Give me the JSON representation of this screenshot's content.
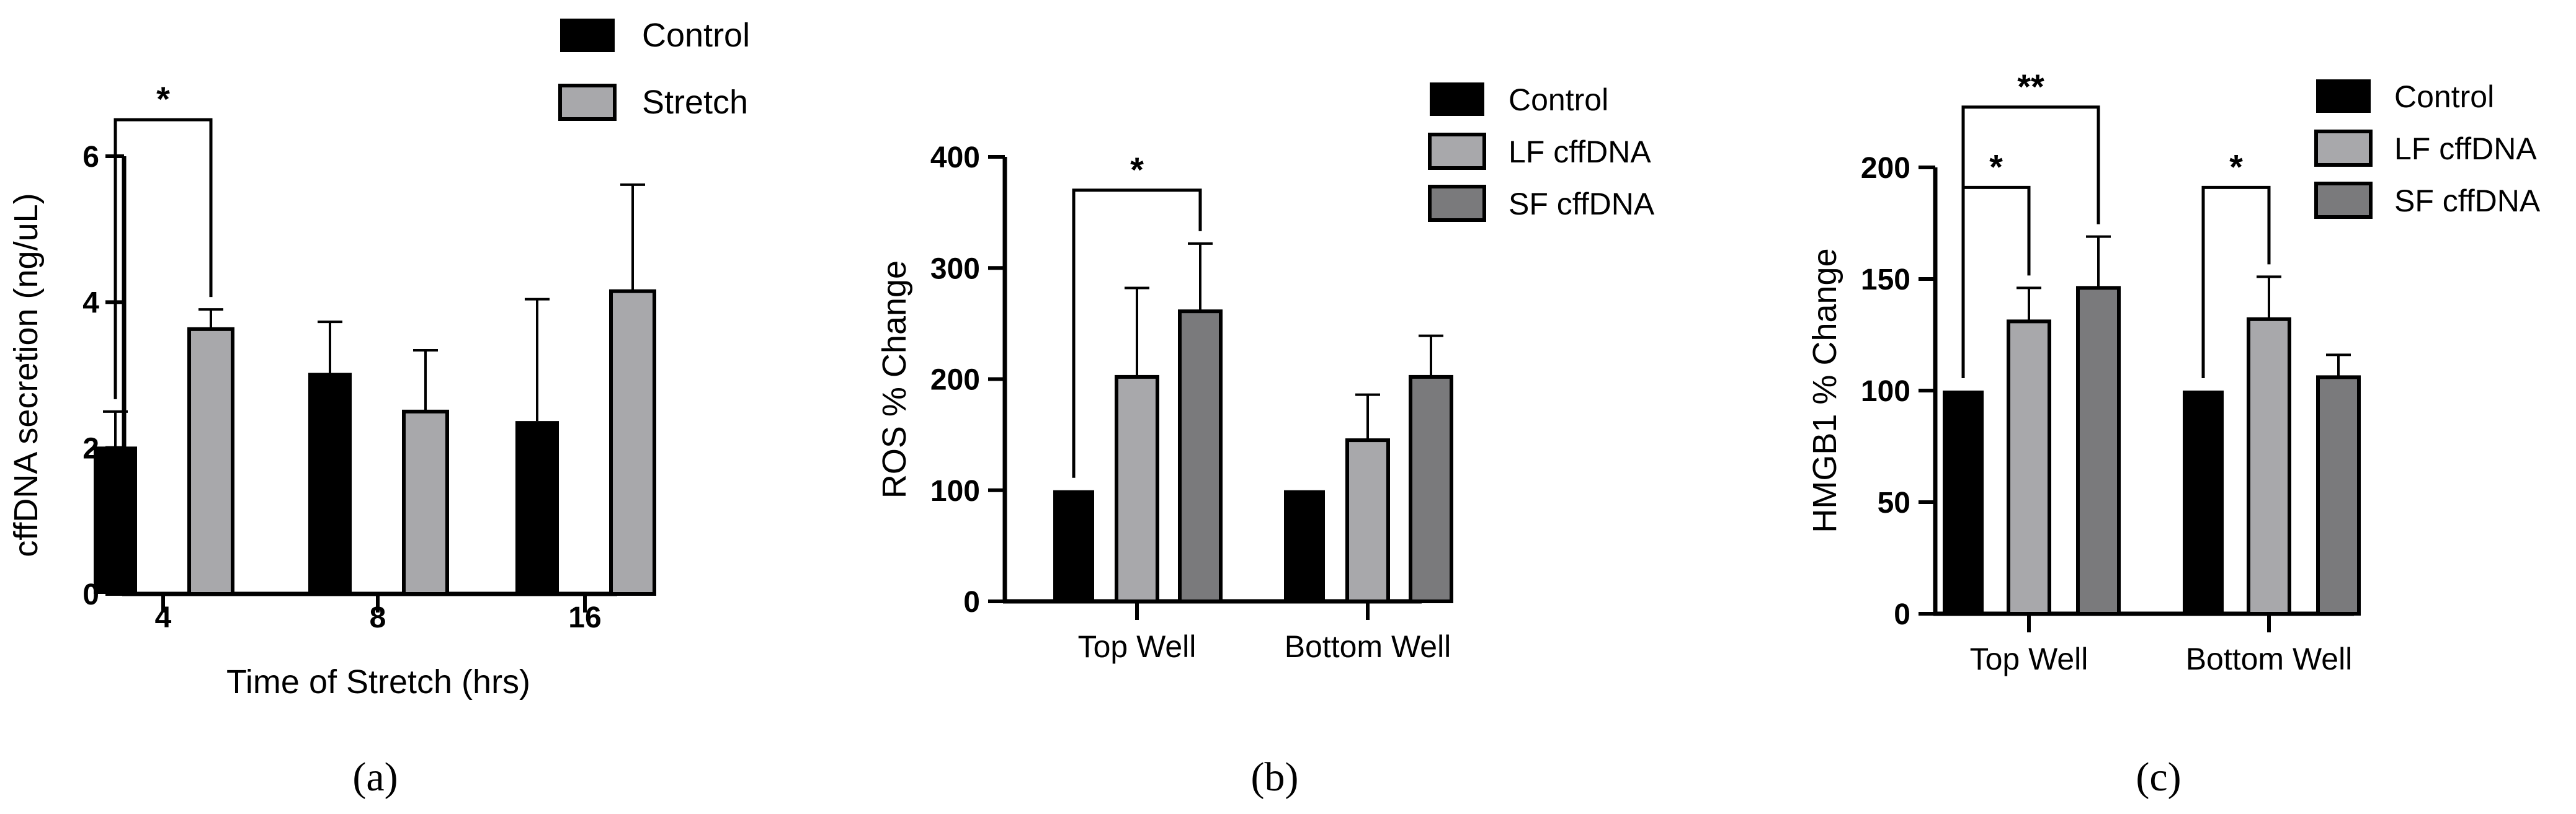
{
  "colors": {
    "control": "#000000",
    "stretch": "#a8a8ab",
    "lf": "#a8a8ab",
    "sf": "#7a7a7c",
    "ink": "#000000"
  },
  "chart_data": [
    {
      "panel": "(a)",
      "type": "bar",
      "title": "",
      "xlabel": "Time of Stretch (hrs)",
      "ylabel": "cffDNA secretion (ng/uL)",
      "ylim": [
        0,
        6
      ],
      "yticks": [
        0,
        2,
        4,
        6
      ],
      "categories": [
        "4",
        "8",
        "16"
      ],
      "legend_position": "top-right",
      "series": [
        {
          "name": "Control",
          "color": "control",
          "values": [
            2.02,
            3.03,
            2.37
          ],
          "errors": [
            0.48,
            0.7,
            1.67
          ]
        },
        {
          "name": "Stretch",
          "color": "stretch",
          "values": [
            3.63,
            2.5,
            4.15
          ],
          "errors": [
            0.27,
            0.84,
            1.46
          ]
        }
      ],
      "significance": [
        {
          "label": "*",
          "from": [
            0,
            0
          ],
          "to": [
            0,
            1
          ],
          "y": 6.5
        }
      ]
    },
    {
      "panel": "(b)",
      "type": "bar",
      "title": "",
      "xlabel": "",
      "ylabel": "ROS % Change",
      "ylim": [
        0,
        400
      ],
      "yticks": [
        0,
        100,
        200,
        300,
        400
      ],
      "categories": [
        "Top Well",
        "Bottom Well"
      ],
      "legend_position": "top-right",
      "series": [
        {
          "name": "Control",
          "color": "control",
          "values": [
            100,
            100
          ],
          "errors": [
            0,
            0
          ]
        },
        {
          "name": "LF cffDNA",
          "color": "lf",
          "values": [
            202,
            145
          ],
          "errors": [
            80,
            41
          ]
        },
        {
          "name": "SF cffDNA",
          "color": "sf",
          "values": [
            261,
            202
          ],
          "errors": [
            61,
            37
          ]
        }
      ],
      "significance": [
        {
          "label": "*",
          "from": [
            0,
            0
          ],
          "to": [
            0,
            2
          ],
          "y": 370
        }
      ]
    },
    {
      "panel": "(c)",
      "type": "bar",
      "title": "",
      "xlabel": "",
      "ylabel": "HMGB1 % Change",
      "ylim": [
        0,
        200
      ],
      "yticks": [
        0,
        50,
        100,
        150,
        200
      ],
      "categories": [
        "Top Well",
        "Bottom Well"
      ],
      "legend_position": "top-right",
      "series": [
        {
          "name": "Control",
          "color": "control",
          "values": [
            100,
            100
          ],
          "errors": [
            0,
            0
          ]
        },
        {
          "name": "LF cffDNA",
          "color": "lf",
          "values": [
            131,
            132
          ],
          "errors": [
            15,
            19
          ]
        },
        {
          "name": "SF cffDNA",
          "color": "sf",
          "values": [
            146,
            106
          ],
          "errors": [
            23,
            10
          ]
        }
      ],
      "significance": [
        {
          "label": "*",
          "from": [
            0,
            0
          ],
          "to": [
            0,
            1
          ],
          "y": 191
        },
        {
          "label": "**",
          "from": [
            0,
            0
          ],
          "to": [
            0,
            2
          ],
          "y": 227
        },
        {
          "label": "*",
          "from": [
            1,
            0
          ],
          "to": [
            1,
            1
          ],
          "y": 191
        }
      ]
    }
  ]
}
